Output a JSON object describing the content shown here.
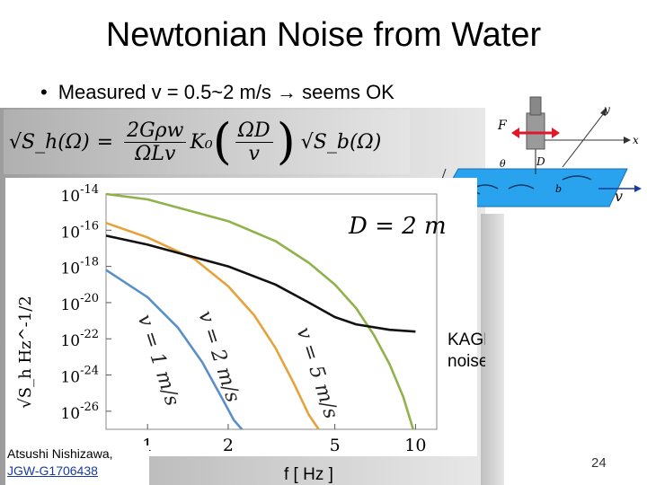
{
  "slide": {
    "title": "Newtonian Noise from Water",
    "bullet": "Measured v = 0.5~2 m/s → seems OK",
    "author_name": "Atsushi Nishizawa,",
    "doc_id": "JGW-G1706438",
    "page_number": "24"
  },
  "formula": {
    "lhs": "√S_h(Ω)",
    "eq": "=",
    "numerator": "2Gρw",
    "denominator": "ΩLv",
    "k0": "K₀",
    "inner_numerator": "ΩD",
    "inner_denominator": "v",
    "rhs": "√S_b(Ω)"
  },
  "diagram": {
    "label_F": "F",
    "label_D": "D",
    "label_w": "w",
    "label_theta": "θ",
    "label_b": "b",
    "label_v": "v",
    "label_x": "x",
    "label_y": "y",
    "water_color": "#2aa3ee",
    "arrow_color": "#e0182a"
  },
  "chart_data": {
    "type": "line",
    "xscale": "log",
    "yscale": "log",
    "xlim": [
      0.7,
      12
    ],
    "ylim": [
      1e-27,
      1e-14
    ],
    "x_ticks": [
      1,
      2,
      5,
      10
    ],
    "x_tick_labels": [
      "1",
      "2",
      "5",
      "10"
    ],
    "y_ticks": [
      -26,
      -24,
      -22,
      -20,
      -18,
      -16,
      -14
    ],
    "y_tick_labels": [
      "10^-26",
      "10^-24",
      "10^-22",
      "10^-20",
      "10^-18",
      "10^-16",
      "10^-14"
    ],
    "xlabel": "f [ Hz ]",
    "ylabel": "√S_h Hz^-1/2",
    "annotation": "D = 2 m",
    "series": [
      {
        "name": "v = 1 m/s",
        "color": "#5b8fc7",
        "x": [
          0.7,
          1.0,
          1.3,
          1.6,
          1.9,
          2.1,
          2.25
        ],
        "y": [
          -18.2,
          -19.7,
          -21.4,
          -23.3,
          -25.3,
          -26.5,
          -27
        ]
      },
      {
        "name": "v = 2 m/s",
        "color": "#e6a23c",
        "x": [
          0.7,
          1.0,
          1.5,
          2.0,
          2.5,
          3.0,
          3.5,
          4.0,
          4.35
        ],
        "y": [
          -15.6,
          -16.4,
          -17.6,
          -19.1,
          -20.7,
          -22.5,
          -24.4,
          -26.2,
          -27
        ]
      },
      {
        "name": "v = 5 m/s",
        "color": "#8fb34a",
        "x": [
          0.7,
          1.0,
          2.0,
          3.0,
          4.0,
          5.0,
          6.0,
          7.0,
          8.0,
          9.0,
          9.8
        ],
        "y": [
          -14.0,
          -14.3,
          -15.5,
          -16.6,
          -17.8,
          -19.0,
          -20.3,
          -21.8,
          -23.4,
          -25.2,
          -27
        ]
      },
      {
        "name": "KAGRA noise curve",
        "color": "#111111",
        "x": [
          0.7,
          1.0,
          2.0,
          3.0,
          4.0,
          5.0,
          6.0,
          8.0,
          10.0
        ],
        "y": [
          -16.3,
          -16.8,
          -18.0,
          -19.0,
          -20.0,
          -20.8,
          -21.2,
          -21.5,
          -21.6
        ]
      }
    ],
    "curve_labels": [
      {
        "text": "v = 1 m/s",
        "color": "#5b8fc7"
      },
      {
        "text": "v = 2 m/s",
        "color": "#e6a23c"
      },
      {
        "text": "v = 5 m/s",
        "color": "#8fb34a"
      }
    ],
    "kagra_label_line1": "KAGRA",
    "kagra_label_line2": "noise curve",
    "grid": false
  }
}
